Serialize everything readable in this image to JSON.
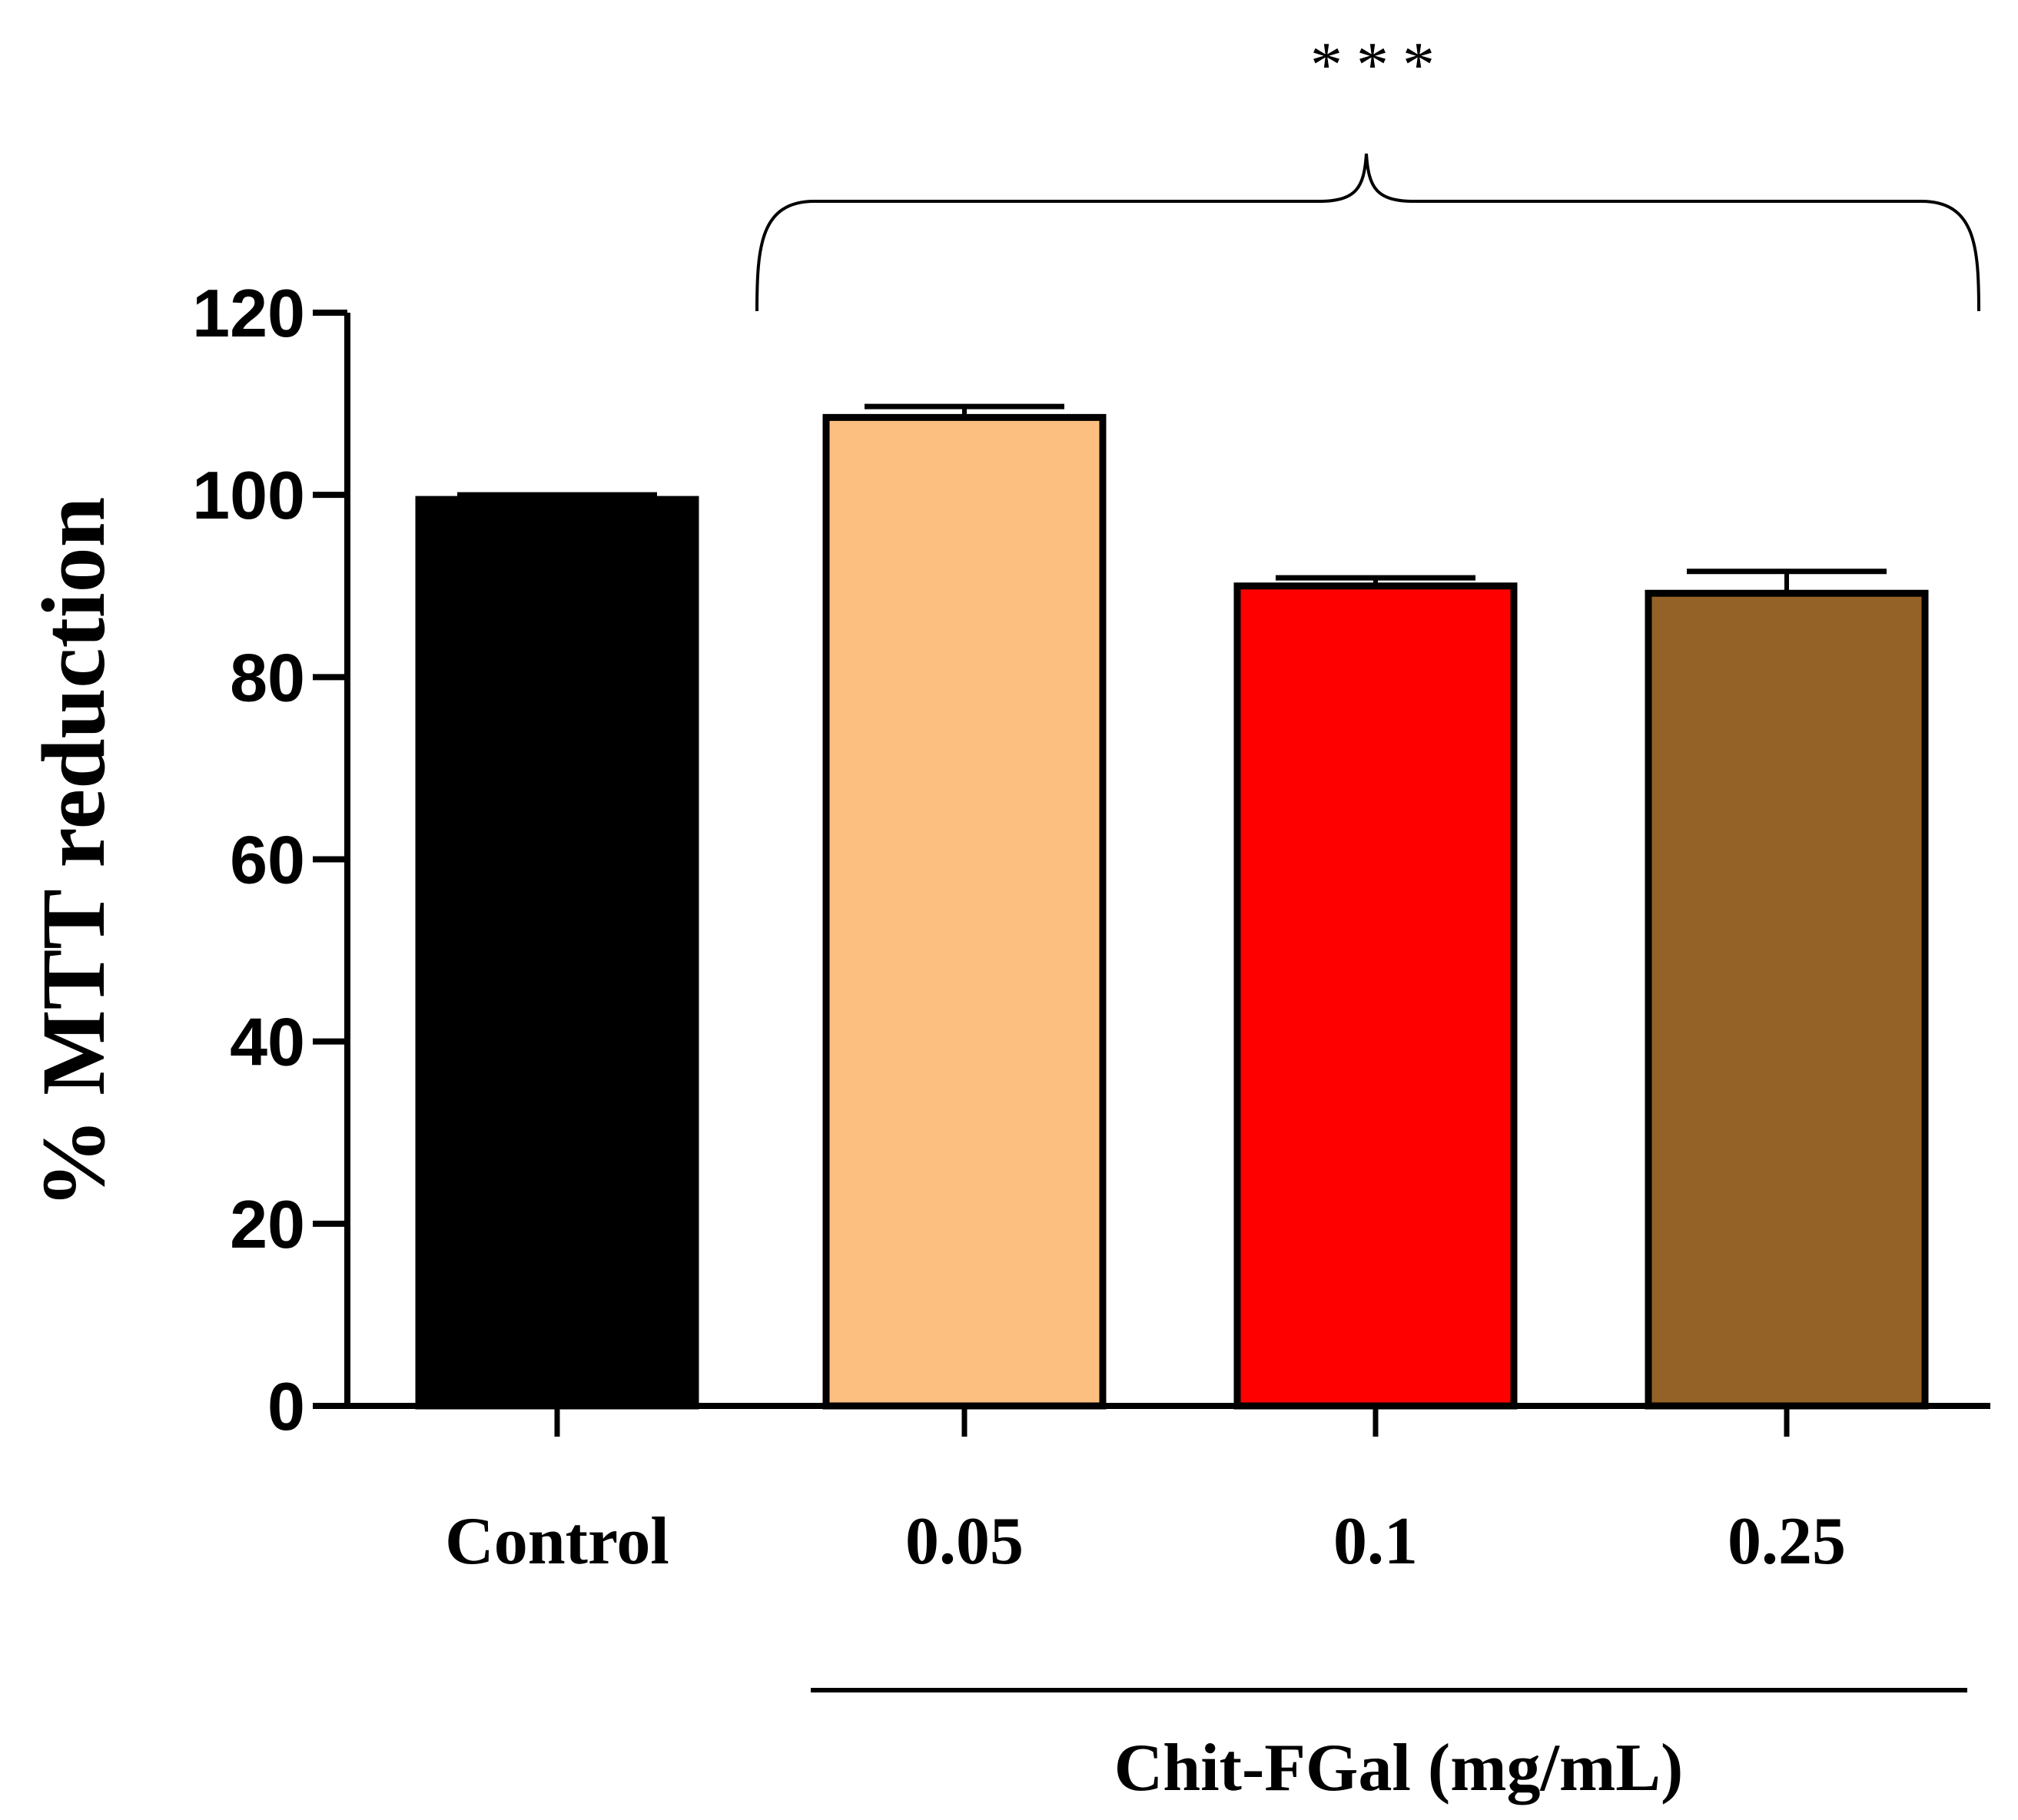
{
  "chart_data": {
    "type": "bar",
    "title": "",
    "xlabel": "",
    "ylabel": "% MTT reduction",
    "ylim": [
      0,
      120
    ],
    "yticks": [
      0,
      20,
      40,
      60,
      80,
      100,
      120
    ],
    "categories": [
      "Control",
      "0.05",
      "0.1",
      "0.25"
    ],
    "values": [
      99.5,
      108.5,
      90.0,
      89.2
    ],
    "errors": [
      0.5,
      1.2,
      0.9,
      2.4
    ],
    "colors": [
      "#000000",
      "#FDBF80",
      "#FF0000",
      "#946126"
    ],
    "group_label": "Chit-FGal (mg/mL)",
    "significance": {
      "label": "***",
      "applies_to": [
        "0.05",
        "0.1",
        "0.25"
      ]
    },
    "grid": false,
    "legend": "none"
  }
}
